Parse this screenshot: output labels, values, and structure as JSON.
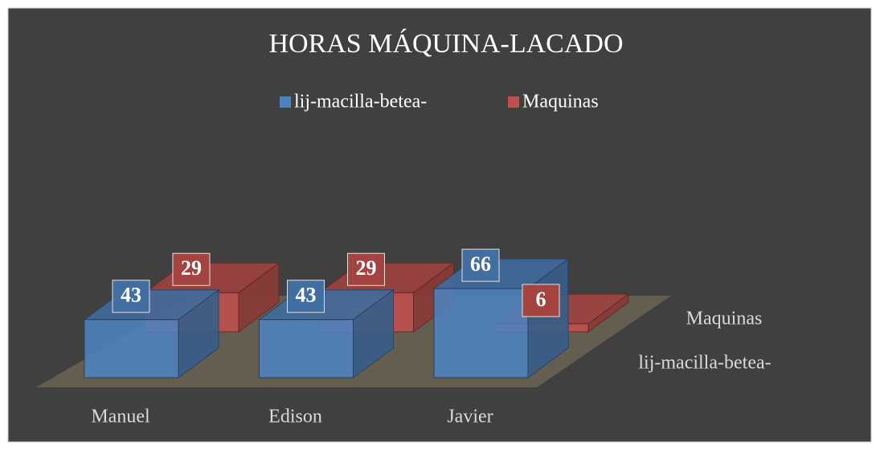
{
  "chart_data": {
    "type": "bar3d",
    "title": "HORAS MÁQUINA-LACADO",
    "categories": [
      "Manuel",
      "Edison",
      "Javier"
    ],
    "series": [
      {
        "name": "lij-macilla-betea-",
        "color": "#4f81bd",
        "values": [
          43,
          43,
          66
        ]
      },
      {
        "name": "Maquinas",
        "color": "#c0504d",
        "values": [
          29,
          29,
          6
        ]
      }
    ],
    "legend": "top"
  }
}
